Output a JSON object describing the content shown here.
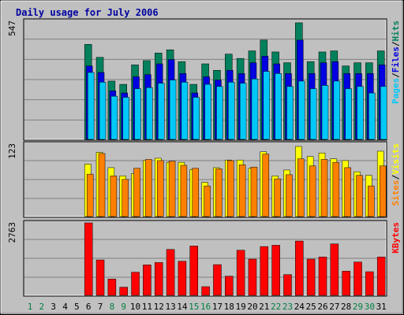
{
  "chart_data": [
    {
      "type": "bar",
      "title": "Daily usage for July 2006",
      "legend": [
        {
          "label": "Pages",
          "color": "#00c8f8"
        },
        {
          "label": "Files",
          "color": "#0000e0"
        },
        {
          "label": "Hits",
          "color": "#00805c"
        }
      ],
      "legend_separator": "/",
      "ymax_label": "547",
      "ylim": [
        0,
        547
      ],
      "x": [
        1,
        2,
        3,
        4,
        5,
        6,
        7,
        8,
        9,
        10,
        11,
        12,
        13,
        14,
        15,
        16,
        17,
        18,
        19,
        20,
        21,
        22,
        23,
        24,
        25,
        26,
        27,
        28,
        29,
        30,
        31
      ],
      "series": [
        {
          "name": "Hits",
          "values": [
            0,
            0,
            0,
            0,
            0,
            440,
            380,
            270,
            255,
            345,
            365,
            400,
            415,
            360,
            255,
            350,
            320,
            395,
            375,
            410,
            460,
            405,
            355,
            540,
            360,
            405,
            410,
            340,
            355,
            355,
            410
          ]
        },
        {
          "name": "Files",
          "values": [
            0,
            0,
            0,
            0,
            0,
            340,
            310,
            225,
            215,
            290,
            300,
            350,
            370,
            305,
            215,
            290,
            275,
            320,
            305,
            355,
            385,
            350,
            305,
            460,
            305,
            355,
            360,
            305,
            305,
            305,
            345
          ]
        },
        {
          "name": "Pages",
          "values": [
            0,
            0,
            0,
            0,
            0,
            310,
            265,
            200,
            195,
            235,
            240,
            260,
            275,
            265,
            195,
            255,
            245,
            265,
            260,
            280,
            315,
            305,
            245,
            270,
            235,
            250,
            270,
            235,
            245,
            215,
            245
          ]
        }
      ]
    },
    {
      "type": "bar",
      "legend": [
        {
          "label": "Sites",
          "color": "#ff8000"
        },
        {
          "label": "Visits",
          "color": "#ffff00"
        }
      ],
      "legend_separator": "/",
      "ymax_label": "123",
      "ylim": [
        0,
        123
      ],
      "x": [
        1,
        2,
        3,
        4,
        5,
        6,
        7,
        8,
        9,
        10,
        11,
        12,
        13,
        14,
        15,
        16,
        17,
        18,
        19,
        20,
        21,
        22,
        23,
        24,
        25,
        26,
        27,
        28,
        29,
        30,
        31
      ],
      "series": [
        {
          "name": "Visits",
          "values": [
            0,
            0,
            0,
            0,
            0,
            89,
            109,
            83,
            69,
            73,
            95,
            99,
            92,
            92,
            80,
            58,
            83,
            96,
            96,
            82,
            110,
            69,
            79,
            119,
            102,
            108,
            98,
            95,
            76,
            70,
            111
          ]
        },
        {
          "name": "Sites",
          "values": [
            0,
            0,
            0,
            0,
            0,
            72,
            107,
            69,
            63,
            82,
            97,
            95,
            94,
            87,
            82,
            52,
            81,
            95,
            88,
            84,
            106,
            64,
            71,
            98,
            86,
            97,
            92,
            83,
            70,
            52,
            86
          ]
        }
      ]
    },
    {
      "type": "bar",
      "legend": [
        {
          "label": "KBytes",
          "color": "#ff0000"
        }
      ],
      "ymax_label": "2763",
      "ylim": [
        0,
        2763
      ],
      "x": [
        1,
        2,
        3,
        4,
        5,
        6,
        7,
        8,
        9,
        10,
        11,
        12,
        13,
        14,
        15,
        16,
        17,
        18,
        19,
        20,
        21,
        22,
        23,
        24,
        25,
        26,
        27,
        28,
        29,
        30,
        31
      ],
      "series": [
        {
          "name": "KBytes",
          "values": [
            0,
            0,
            0,
            0,
            0,
            2763,
            1350,
            620,
            310,
            880,
            1160,
            1250,
            1750,
            1300,
            1880,
            330,
            1170,
            730,
            1720,
            1380,
            1860,
            1910,
            790,
            2070,
            1380,
            1460,
            1960,
            920,
            1270,
            900,
            1460
          ]
        }
      ]
    }
  ],
  "day_labels": [
    "1",
    "2",
    "3",
    "4",
    "5",
    "6",
    "7",
    "8",
    "9",
    "10",
    "11",
    "12",
    "13",
    "14",
    "15",
    "16",
    "17",
    "18",
    "19",
    "20",
    "21",
    "22",
    "23",
    "24",
    "25",
    "26",
    "27",
    "28",
    "29",
    "30",
    "31"
  ],
  "weekend_days": [
    1,
    2,
    8,
    9,
    15,
    16,
    22,
    23,
    29,
    30
  ],
  "colors": {
    "background": "#c0c0c0",
    "plot_bg": "#c0c0c0",
    "title": "#0000a0",
    "weekday_label": "#000000",
    "weekend_label": "#008040",
    "bar_outline": "#000000"
  }
}
